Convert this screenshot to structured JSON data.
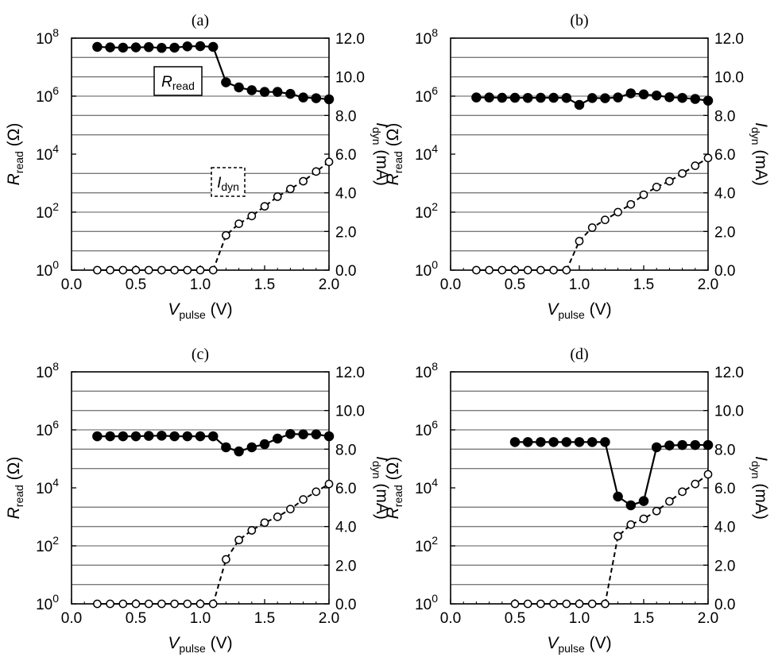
{
  "figure": {
    "x_axis": {
      "label_main": "V",
      "label_sub": "pulse",
      "label_unit": " (V)",
      "range": [
        0.0,
        2.0
      ],
      "ticks": [
        "0.0",
        "0.5",
        "1.0",
        "1.5",
        "2.0"
      ]
    },
    "left_axis": {
      "label_main": "R",
      "label_sub": "read",
      "label_unit": " (Ω)",
      "ticks_base": "10",
      "tick_exponents": [
        "0",
        "2",
        "4",
        "6",
        "8"
      ]
    },
    "right_axis": {
      "label_main": "I",
      "label_sub": "dyn",
      "label_unit": " (mA)",
      "range": [
        0,
        12
      ],
      "ticks": [
        "0.0",
        "2.0",
        "4.0",
        "6.0",
        "8.0",
        "10.0",
        "12.0"
      ]
    },
    "legend": {
      "r_main": "R",
      "r_sub": "read",
      "i_main": "I",
      "i_sub": "dyn"
    }
  },
  "chart_data": [
    {
      "type": "line",
      "title": "(a)",
      "xlabel": "Vpulse (V)",
      "ylabel_left": "Rread (Ω)",
      "ylabel_right": "Idyn (mA)",
      "xlim": [
        0,
        2
      ],
      "ylim_left_log10": [
        0,
        8
      ],
      "ylim_right": [
        0,
        12
      ],
      "series": [
        {
          "name": "Rread",
          "axis": "left",
          "style": "filled-solid",
          "x": [
            0.2,
            0.3,
            0.4,
            0.5,
            0.6,
            0.7,
            0.8,
            0.9,
            1.0,
            1.1,
            1.2,
            1.3,
            1.4,
            1.5,
            1.6,
            1.7,
            1.8,
            1.9,
            2.0
          ],
          "y": [
            50000000.0,
            48000000.0,
            47000000.0,
            48000000.0,
            49000000.0,
            46000000.0,
            47000000.0,
            52000000.0,
            53000000.0,
            50000000.0,
            3000000.0,
            2000000.0,
            1600000.0,
            1400000.0,
            1400000.0,
            1200000.0,
            900000.0,
            850000.0,
            780000.0
          ]
        },
        {
          "name": "Idyn",
          "axis": "right",
          "style": "open-dashed",
          "x": [
            0.2,
            0.3,
            0.4,
            0.5,
            0.6,
            0.7,
            0.8,
            0.9,
            1.0,
            1.1,
            1.2,
            1.3,
            1.4,
            1.5,
            1.6,
            1.7,
            1.8,
            1.9,
            2.0
          ],
          "y": [
            0,
            0,
            0,
            0,
            0,
            0,
            0,
            0,
            0,
            0,
            1.8,
            2.4,
            2.8,
            3.3,
            3.8,
            4.2,
            4.6,
            5.1,
            5.6
          ]
        }
      ],
      "annotations": [
        "Rread label box (solid)",
        "Idyn label box (dashed)"
      ]
    },
    {
      "type": "line",
      "title": "(b)",
      "xlabel": "Vpulse (V)",
      "ylabel_left": "Rread (Ω)",
      "ylabel_right": "Idyn (mA)",
      "xlim": [
        0,
        2
      ],
      "ylim_left_log10": [
        0,
        8
      ],
      "ylim_right": [
        0,
        12
      ],
      "series": [
        {
          "name": "Rread",
          "axis": "left",
          "style": "filled-solid",
          "x": [
            0.2,
            0.3,
            0.4,
            0.5,
            0.6,
            0.7,
            0.8,
            0.9,
            1.0,
            1.1,
            1.2,
            1.3,
            1.4,
            1.5,
            1.6,
            1.7,
            1.8,
            1.9,
            2.0
          ],
          "y": [
            900000.0,
            900000.0,
            880000.0,
            880000.0,
            870000.0,
            880000.0,
            880000.0,
            870000.0,
            500000.0,
            860000.0,
            850000.0,
            900000.0,
            1250000.0,
            1150000.0,
            1050000.0,
            920000.0,
            870000.0,
            800000.0,
            700000.0
          ]
        },
        {
          "name": "Idyn",
          "axis": "right",
          "style": "open-dashed",
          "x": [
            0.2,
            0.3,
            0.4,
            0.5,
            0.6,
            0.7,
            0.8,
            0.9,
            1.0,
            1.1,
            1.2,
            1.3,
            1.4,
            1.5,
            1.6,
            1.7,
            1.8,
            1.9,
            2.0
          ],
          "y": [
            0,
            0,
            0,
            0,
            0,
            0,
            0,
            0,
            1.5,
            2.2,
            2.6,
            3.0,
            3.4,
            3.9,
            4.3,
            4.6,
            5.0,
            5.4,
            5.8
          ]
        }
      ]
    },
    {
      "type": "line",
      "title": "(c)",
      "xlabel": "Vpulse (V)",
      "ylabel_left": "Rread (Ω)",
      "ylabel_right": "Idyn (mA)",
      "xlim": [
        0,
        2
      ],
      "ylim_left_log10": [
        0,
        8
      ],
      "ylim_right": [
        0,
        12
      ],
      "series": [
        {
          "name": "Rread",
          "axis": "left",
          "style": "filled-solid",
          "x": [
            0.2,
            0.3,
            0.4,
            0.5,
            0.6,
            0.7,
            0.8,
            0.9,
            1.0,
            1.1,
            1.2,
            1.3,
            1.4,
            1.5,
            1.6,
            1.7,
            1.8,
            1.9,
            2.0
          ],
          "y": [
            600000.0,
            600000.0,
            600000.0,
            600000.0,
            620000.0,
            630000.0,
            600000.0,
            600000.0,
            600000.0,
            600000.0,
            250000.0,
            180000.0,
            250000.0,
            320000.0,
            500000.0,
            720000.0,
            700000.0,
            700000.0,
            600000.0
          ]
        },
        {
          "name": "Idyn",
          "axis": "right",
          "style": "open-dashed",
          "x": [
            0.2,
            0.3,
            0.4,
            0.5,
            0.6,
            0.7,
            0.8,
            0.9,
            1.0,
            1.1,
            1.2,
            1.3,
            1.4,
            1.5,
            1.6,
            1.7,
            1.8,
            1.9,
            2.0
          ],
          "y": [
            0,
            0,
            0,
            0,
            0,
            0,
            0,
            0,
            0,
            0,
            2.3,
            3.3,
            3.8,
            4.2,
            4.5,
            4.9,
            5.4,
            5.8,
            6.2
          ]
        }
      ]
    },
    {
      "type": "line",
      "title": "(d)",
      "xlabel": "Vpulse (V)",
      "ylabel_left": "Rread (Ω)",
      "ylabel_right": "Idyn (mA)",
      "xlim": [
        0,
        2
      ],
      "ylim_left_log10": [
        0,
        8
      ],
      "ylim_right": [
        0,
        12
      ],
      "series": [
        {
          "name": "Rread",
          "axis": "left",
          "style": "filled-solid",
          "x": [
            0.5,
            0.6,
            0.7,
            0.8,
            0.9,
            1.0,
            1.1,
            1.2,
            1.3,
            1.4,
            1.5,
            1.6,
            1.7,
            1.8,
            1.9,
            2.0
          ],
          "y": [
            380000.0,
            380000.0,
            380000.0,
            380000.0,
            380000.0,
            380000.0,
            380000.0,
            380000.0,
            5000.0,
            2500.0,
            3500.0,
            250000.0,
            290000.0,
            300000.0,
            300000.0,
            300000.0
          ]
        },
        {
          "name": "Idyn",
          "axis": "right",
          "style": "open-dashed",
          "x": [
            0.5,
            0.6,
            0.7,
            0.8,
            0.9,
            1.0,
            1.1,
            1.2,
            1.3,
            1.4,
            1.5,
            1.6,
            1.7,
            1.8,
            1.9,
            2.0
          ],
          "y": [
            0,
            0,
            0,
            0,
            0,
            0,
            0,
            0,
            3.5,
            4.1,
            4.4,
            4.8,
            5.3,
            5.8,
            6.2,
            6.7
          ]
        }
      ]
    }
  ]
}
